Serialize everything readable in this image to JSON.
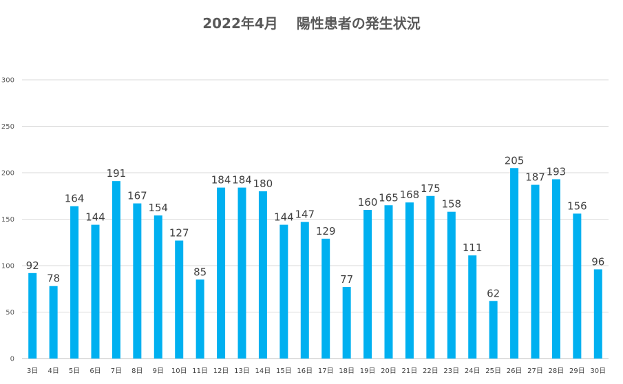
{
  "chart_data": {
    "type": "bar",
    "title": "2022年4月　 陽性患者の発生状況",
    "xlabel": "",
    "ylabel": "",
    "ylim": [
      0,
      300
    ],
    "yticks": [
      0,
      50,
      100,
      150,
      200,
      250,
      300
    ],
    "grid": true,
    "legend": "none",
    "bar_color": "#00B0F0",
    "categories": [
      "3日",
      "4日",
      "5日",
      "6日",
      "7日",
      "8日",
      "9日",
      "10日",
      "11日",
      "12日",
      "13日",
      "14日",
      "15日",
      "16日",
      "17日",
      "18日",
      "19日",
      "20日",
      "21日",
      "22日",
      "23日",
      "24日",
      "25日",
      "26日",
      "27日",
      "28日",
      "29日",
      "30日"
    ],
    "values": [
      92,
      78,
      164,
      144,
      191,
      167,
      154,
      127,
      85,
      184,
      184,
      180,
      144,
      147,
      129,
      77,
      160,
      165,
      168,
      175,
      158,
      111,
      62,
      205,
      187,
      193,
      156,
      96
    ]
  }
}
